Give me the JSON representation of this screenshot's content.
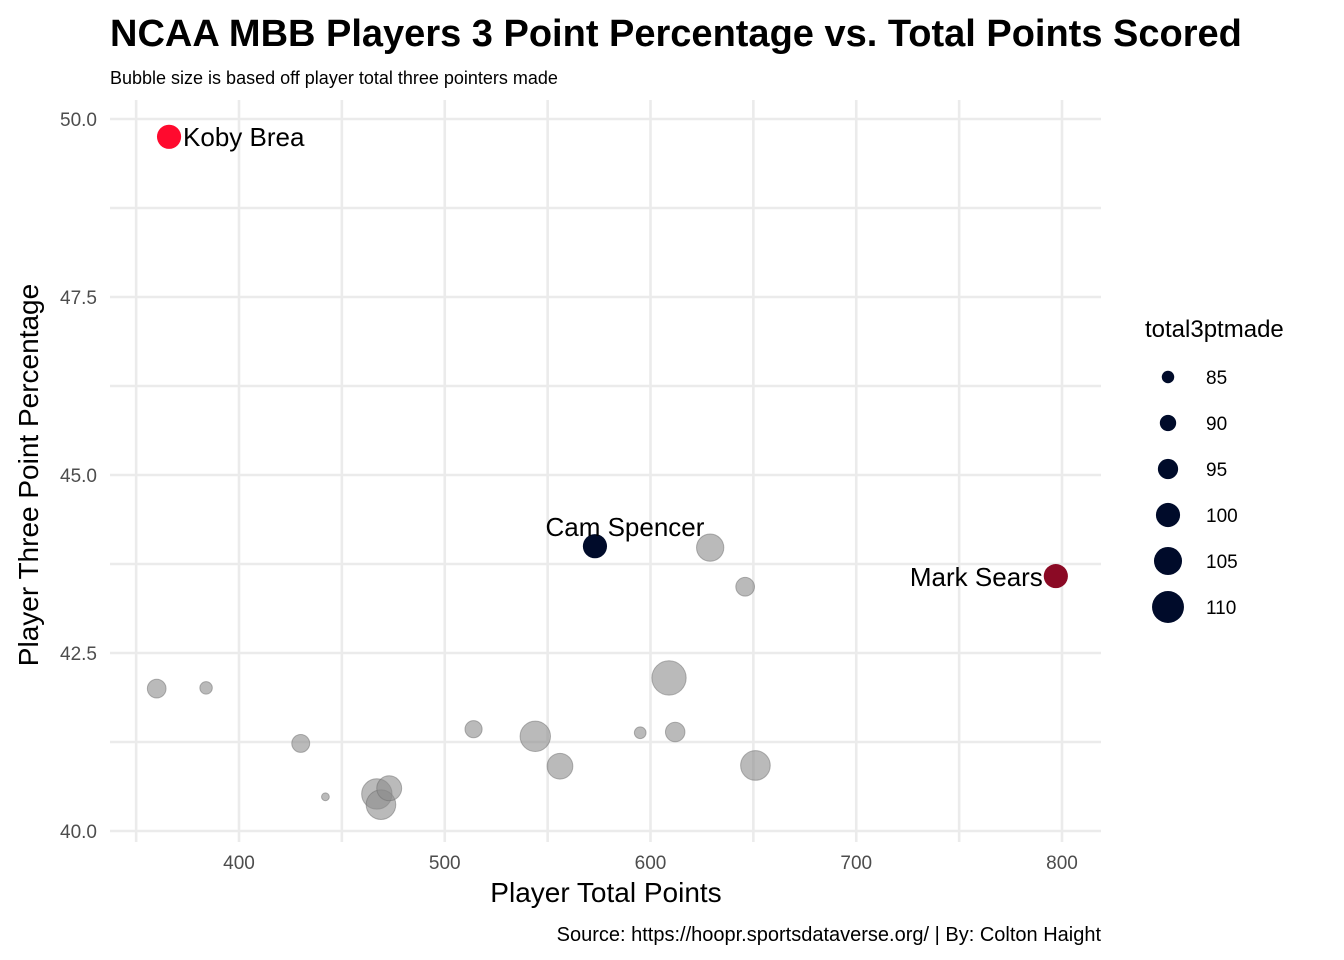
{
  "chart_data": {
    "type": "scatter",
    "title": "NCAA MBB Players 3 Point Percentage vs. Total Points Scored",
    "subtitle": "Bubble size is based off player total three pointers made",
    "xlabel": "Player Total Points",
    "ylabel": "Player Three Point Percentage",
    "caption": "Source: https://hoopr.sportsdataverse.org/ | By: Colton Haight",
    "xlim": [
      340,
      820
    ],
    "ylim": [
      40.0,
      50.0
    ],
    "x_ticks": [
      400,
      500,
      600,
      700,
      800
    ],
    "y_ticks": [
      40.0,
      42.5,
      45.0,
      47.5,
      50.0
    ],
    "x_tick_labels": [
      "400",
      "500",
      "600",
      "700",
      "800"
    ],
    "y_tick_labels": [
      "40.0",
      "42.5",
      "45.0",
      "47.5",
      "50.0"
    ],
    "grid": true,
    "size_legend": {
      "title": "total3ptmade",
      "position": "right",
      "values": [
        85,
        90,
        95,
        100,
        105,
        110
      ],
      "labels": [
        "85",
        "90",
        "95",
        "100",
        "105",
        "110"
      ],
      "color": "#000B2A"
    },
    "highlighted": [
      {
        "label": "Koby Brea",
        "x": 366,
        "y": 49.75,
        "size": 100,
        "color": "#FF0A2E"
      },
      {
        "label": "Cam Spencer",
        "x": 573,
        "y": 44.0,
        "size": 100,
        "color": "#000B2A"
      },
      {
        "label": "Mark Sears",
        "x": 797,
        "y": 43.58,
        "size": 100,
        "color": "#8B0A25"
      }
    ],
    "others": [
      {
        "x": 360,
        "y": 42.0,
        "size": 93
      },
      {
        "x": 384,
        "y": 42.01,
        "size": 85
      },
      {
        "x": 430,
        "y": 41.23,
        "size": 92
      },
      {
        "x": 442,
        "y": 40.48,
        "size": 79
      },
      {
        "x": 467,
        "y": 40.52,
        "size": 108
      },
      {
        "x": 469,
        "y": 40.37,
        "size": 107
      },
      {
        "x": 473,
        "y": 40.6,
        "size": 101
      },
      {
        "x": 514,
        "y": 41.43,
        "size": 91
      },
      {
        "x": 544,
        "y": 41.33,
        "size": 108
      },
      {
        "x": 556,
        "y": 40.91,
        "size": 102
      },
      {
        "x": 595,
        "y": 41.38,
        "size": 84
      },
      {
        "x": 609,
        "y": 42.15,
        "size": 113
      },
      {
        "x": 612,
        "y": 41.39,
        "size": 94
      },
      {
        "x": 629,
        "y": 43.98,
        "size": 104
      },
      {
        "x": 646,
        "y": 43.43,
        "size": 93
      },
      {
        "x": 651,
        "y": 40.92,
        "size": 107
      }
    ],
    "others_color": "#8c8c8c"
  }
}
